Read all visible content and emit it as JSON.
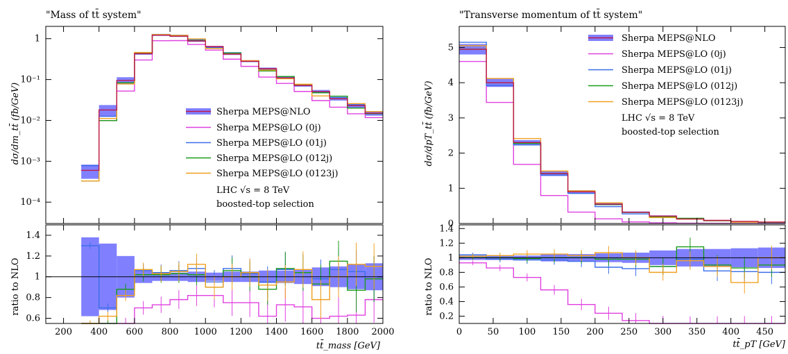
{
  "colors": {
    "nlo_band": "#8080ff",
    "nlo_line": "#c0184a",
    "lo_0j": "#e040e0",
    "lo_01j": "#3a6ee8",
    "lo_012j": "#1a9a1a",
    "lo_0123j": "#f0a020"
  },
  "legend": {
    "nlo": "Sherpa MEPS@NLO",
    "lo_0j": "Sherpa MEPS@LO (0j)",
    "lo_01j": "Sherpa MEPS@LO (01j)",
    "lo_012j": "Sherpa MEPS@LO (012j)",
    "lo_0123j": "Sherpa MEPS@LO (0123j)"
  },
  "notes": {
    "lhc": "LHC √s = 8 TeV",
    "selection": "boosted-top selection"
  },
  "chart_data": [
    {
      "type": "line",
      "title": "\"Mass of tt̄ system\"",
      "ylabel": "dσ/dm_tt̄ (fb/GeV)",
      "ratio_ylabel": "ratio to NLO",
      "xlabel": "tt̄_mass [GeV]",
      "xlim": [
        100,
        2000
      ],
      "ylim": [
        3e-05,
        2.0
      ],
      "yscale": "log",
      "ratio_ylim": [
        0.55,
        1.5
      ],
      "x_ticks": [
        "200",
        "400",
        "600",
        "800",
        "1000",
        "1200",
        "1400",
        "1600",
        "1800",
        "2000"
      ],
      "x_tick_values": [
        200,
        400,
        600,
        800,
        1000,
        1200,
        1400,
        1600,
        1800,
        2000
      ],
      "y_ticks": [
        "1",
        "10⁻¹",
        "10⁻²",
        "10⁻³",
        "10⁻⁴"
      ],
      "y_tick_values": [
        1,
        0.1,
        0.01,
        0.001,
        0.0001
      ],
      "ratio_ticks": [
        "1.4",
        "1.2",
        "1",
        "0.8",
        "0.6"
      ],
      "ratio_tick_values": [
        1.4,
        1.2,
        1.0,
        0.8,
        0.6
      ],
      "bins": [
        300,
        400,
        500,
        600,
        700,
        800,
        900,
        1000,
        1100,
        1200,
        1300,
        1400,
        1500,
        1600,
        1700,
        1800,
        1900,
        2000
      ],
      "nlo": [
        0.0006,
        0.018,
        0.095,
        0.43,
        1.22,
        1.15,
        0.88,
        0.64,
        0.42,
        0.28,
        0.185,
        0.11,
        0.072,
        0.051,
        0.034,
        0.023,
        0.015
      ],
      "nlo_band_rel": [
        0.38,
        0.32,
        0.2,
        0.06,
        0.04,
        0.04,
        0.05,
        0.04,
        0.05,
        0.05,
        0.06,
        0.06,
        0.07,
        0.09,
        0.1,
        0.12,
        0.13
      ],
      "series": [
        {
          "name": "Sherpa MEPS@LO (0j)",
          "key": "lo_0j",
          "ratio": [
            0.55,
            0.55,
            0.55,
            0.7,
            0.73,
            0.78,
            0.82,
            0.82,
            0.75,
            0.75,
            0.62,
            0.73,
            0.71,
            0.6,
            0.62,
            0.63,
            0.78
          ]
        },
        {
          "name": "Sherpa MEPS@LO (01j)",
          "key": "lo_01j",
          "ratio": [
            1.3,
            0.7,
            0.88,
            1.06,
            1.04,
            1.06,
            1.08,
            0.95,
            1.08,
            1.03,
            0.95,
            1.07,
            1.04,
            0.98,
            1.07,
            1.05,
            0.98
          ]
        },
        {
          "name": "Sherpa MEPS@LO (012j)",
          "key": "lo_012j",
          "ratio": [
            0.55,
            0.55,
            0.88,
            1.02,
            1.02,
            1.03,
            1.02,
            0.9,
            1.06,
            1.0,
            0.88,
            1.08,
            1.04,
            0.93,
            1.15,
            0.87,
            0.98
          ]
        },
        {
          "name": "Sherpa MEPS@LO (0123j)",
          "key": "lo_0123j",
          "ratio": [
            0.55,
            0.62,
            0.82,
            1.07,
            1.03,
            1.05,
            1.12,
            0.9,
            1.0,
            1.04,
            0.92,
            0.95,
            1.07,
            0.78,
            1.0,
            1.12,
            1.1
          ]
        }
      ]
    },
    {
      "type": "line",
      "title": "\"Transverse momentum of tt̄ system\"",
      "ylabel": "dσ/dpT_tt̄ (fb/GeV)",
      "ratio_ylabel": "ratio to NLO",
      "xlabel": "tt̄_pT [GeV]",
      "xlim": [
        0,
        480
      ],
      "ylim": [
        0,
        5.6
      ],
      "yscale": "linear",
      "ratio_ylim": [
        0.1,
        1.45
      ],
      "x_ticks": [
        "0",
        "50",
        "100",
        "150",
        "200",
        "250",
        "300",
        "350",
        "400",
        "450"
      ],
      "x_tick_values": [
        0,
        50,
        100,
        150,
        200,
        250,
        300,
        350,
        400,
        450
      ],
      "y_ticks": [
        "0",
        "1",
        "2",
        "3",
        "4",
        "5"
      ],
      "y_tick_values": [
        0,
        1,
        2,
        3,
        4,
        5
      ],
      "ratio_ticks": [
        "1.4",
        "1.2",
        "1",
        "0.8",
        "0.6",
        "0.4",
        "0.2"
      ],
      "ratio_tick_values": [
        1.4,
        1.2,
        1.0,
        0.8,
        0.6,
        0.4,
        0.2
      ],
      "bins": [
        0,
        40,
        80,
        120,
        160,
        200,
        240,
        280,
        320,
        360,
        400,
        440,
        480
      ],
      "nlo": [
        4.95,
        4.0,
        2.3,
        1.42,
        0.9,
        0.55,
        0.32,
        0.21,
        0.13,
        0.09,
        0.06,
        0.04
      ],
      "nlo_band_rel": [
        0.03,
        0.03,
        0.03,
        0.05,
        0.05,
        0.06,
        0.07,
        0.1,
        0.12,
        0.12,
        0.13,
        0.14
      ],
      "series": [
        {
          "name": "Sherpa MEPS@LO (0j)",
          "key": "lo_0j",
          "ratio": [
            0.93,
            0.86,
            0.73,
            0.56,
            0.36,
            0.24,
            0.14,
            0.09,
            0.07,
            0.06,
            0.05,
            0.04
          ]
        },
        {
          "name": "Sherpa MEPS@LO (01j)",
          "key": "lo_01j",
          "ratio": [
            1.04,
            0.98,
            0.97,
            0.97,
            0.95,
            0.87,
            0.85,
            0.88,
            0.98,
            0.82,
            0.81,
            0.8
          ]
        },
        {
          "name": "Sherpa MEPS@LO (012j)",
          "key": "lo_012j",
          "ratio": [
            1.0,
            1.0,
            0.99,
            1.0,
            1.0,
            0.98,
            0.98,
            0.88,
            1.15,
            0.9,
            0.86,
            0.9
          ]
        },
        {
          "name": "Sherpa MEPS@LO (0123j)",
          "key": "lo_0123j",
          "ratio": [
            1.02,
            1.03,
            1.05,
            1.05,
            1.03,
            1.07,
            1.0,
            0.8,
            0.96,
            0.88,
            0.66,
            1.0
          ]
        }
      ]
    }
  ]
}
